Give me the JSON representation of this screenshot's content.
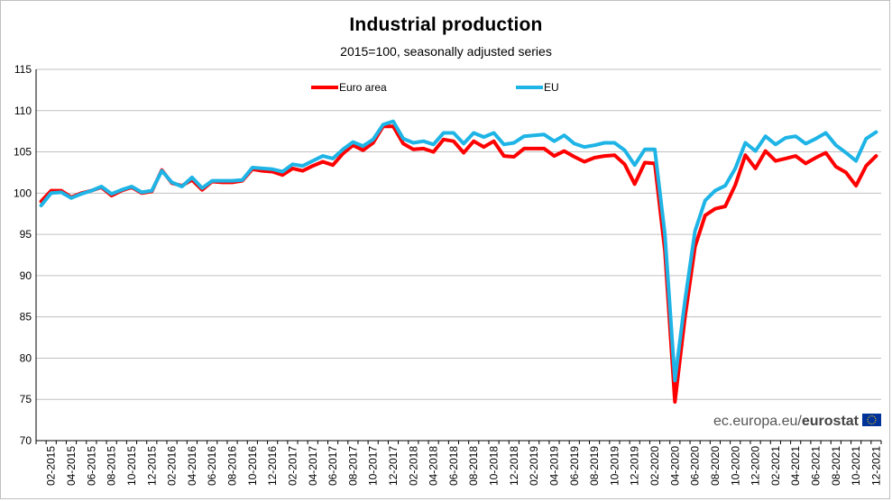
{
  "chart_data": {
    "type": "line",
    "title": "Industrial production",
    "subtitle": "2015=100, seasonally adjusted series",
    "ylim": [
      70,
      115
    ],
    "yticks": [
      70,
      75,
      80,
      85,
      90,
      95,
      100,
      105,
      110,
      115
    ],
    "grid": true,
    "legend_position": "top",
    "x": [
      "01-2015",
      "02-2015",
      "03-2015",
      "04-2015",
      "05-2015",
      "06-2015",
      "07-2015",
      "08-2015",
      "09-2015",
      "10-2015",
      "11-2015",
      "12-2015",
      "01-2016",
      "02-2016",
      "03-2016",
      "04-2016",
      "05-2016",
      "06-2016",
      "07-2016",
      "08-2016",
      "09-2016",
      "10-2016",
      "11-2016",
      "12-2016",
      "01-2017",
      "02-2017",
      "03-2017",
      "04-2017",
      "05-2017",
      "06-2017",
      "07-2017",
      "08-2017",
      "09-2017",
      "10-2017",
      "11-2017",
      "12-2017",
      "01-2018",
      "02-2018",
      "03-2018",
      "04-2018",
      "05-2018",
      "06-2018",
      "07-2018",
      "08-2018",
      "09-2018",
      "10-2018",
      "11-2018",
      "12-2018",
      "01-2019",
      "02-2019",
      "03-2019",
      "04-2019",
      "05-2019",
      "06-2019",
      "07-2019",
      "08-2019",
      "09-2019",
      "10-2019",
      "11-2019",
      "12-2019",
      "01-2020",
      "02-2020",
      "03-2020",
      "04-2020",
      "05-2020",
      "06-2020",
      "07-2020",
      "08-2020",
      "09-2020",
      "10-2020",
      "11-2020",
      "12-2020",
      "01-2021",
      "02-2021",
      "03-2021",
      "04-2021",
      "05-2021",
      "06-2021",
      "07-2021",
      "08-2021",
      "09-2021",
      "10-2021",
      "11-2021",
      "12-2021"
    ],
    "xtick_labels": [
      "02-2015",
      "04-2015",
      "06-2015",
      "08-2015",
      "10-2015",
      "12-2015",
      "02-2016",
      "04-2016",
      "06-2016",
      "08-2016",
      "10-2016",
      "12-2016",
      "02-2017",
      "04-2017",
      "06-2017",
      "08-2017",
      "10-2017",
      "12-2017",
      "02-2018",
      "04-2018",
      "06-2018",
      "08-2018",
      "10-2018",
      "12-2018",
      "02-2019",
      "04-2019",
      "06-2019",
      "08-2019",
      "10-2019",
      "12-2019",
      "02-2020",
      "04-2020",
      "06-2020",
      "08-2020",
      "10-2020",
      "12-2020",
      "02-2021",
      "04-2021",
      "06-2021",
      "08-2021",
      "10-2021",
      "12-2021"
    ],
    "series": [
      {
        "name": "Euro area",
        "color": "#ff0000",
        "values": [
          99.0,
          100.3,
          100.3,
          99.5,
          100.0,
          100.3,
          100.7,
          99.7,
          100.3,
          100.7,
          100.0,
          100.2,
          102.8,
          101.2,
          100.9,
          101.6,
          100.4,
          101.4,
          101.3,
          101.3,
          101.5,
          102.9,
          102.7,
          102.6,
          102.2,
          103.0,
          102.7,
          103.3,
          103.8,
          103.4,
          104.8,
          105.8,
          105.2,
          106.1,
          108.1,
          108.1,
          106.0,
          105.3,
          105.4,
          105.0,
          106.5,
          106.3,
          104.9,
          106.3,
          105.6,
          106.3,
          104.5,
          104.4,
          105.4,
          105.4,
          105.4,
          104.5,
          105.1,
          104.4,
          103.8,
          104.3,
          104.5,
          104.6,
          103.5,
          101.1,
          103.7,
          103.6,
          93.0,
          74.7,
          85.0,
          93.5,
          97.3,
          98.1,
          98.4,
          101.0,
          104.6,
          103.0,
          105.1,
          103.9,
          104.2,
          104.5,
          103.6,
          104.3,
          104.9,
          103.2,
          102.5,
          100.9,
          103.3,
          104.5
        ]
      },
      {
        "name": "EU",
        "color": "#1eb4e6",
        "values": [
          98.5,
          100.0,
          100.1,
          99.4,
          99.9,
          100.3,
          100.8,
          99.9,
          100.4,
          100.8,
          100.1,
          100.3,
          102.7,
          101.3,
          100.8,
          101.9,
          100.6,
          101.5,
          101.5,
          101.5,
          101.6,
          103.1,
          103.0,
          102.9,
          102.6,
          103.5,
          103.3,
          103.9,
          104.5,
          104.2,
          105.3,
          106.2,
          105.7,
          106.5,
          108.3,
          108.7,
          106.6,
          106.1,
          106.3,
          105.9,
          107.3,
          107.3,
          106.0,
          107.3,
          106.8,
          107.3,
          105.9,
          106.1,
          106.9,
          107.0,
          107.1,
          106.3,
          107.0,
          106.0,
          105.6,
          105.8,
          106.1,
          106.1,
          105.2,
          103.4,
          105.3,
          105.3,
          95.0,
          77.3,
          87.0,
          95.4,
          99.1,
          100.3,
          100.9,
          103.0,
          106.1,
          105.1,
          106.9,
          105.9,
          106.7,
          106.9,
          106.0,
          106.6,
          107.3,
          105.8,
          104.9,
          103.9,
          106.6,
          107.4
        ]
      }
    ]
  },
  "source": {
    "prefix": "ec.europa.eu/",
    "name": "eurostat"
  },
  "colors": {
    "euro_area": "#ff0000",
    "eu": "#1eb4e6",
    "grid": "#c0c0c0",
    "flag_blue": "#003399",
    "flag_star": "#ffcc00"
  }
}
